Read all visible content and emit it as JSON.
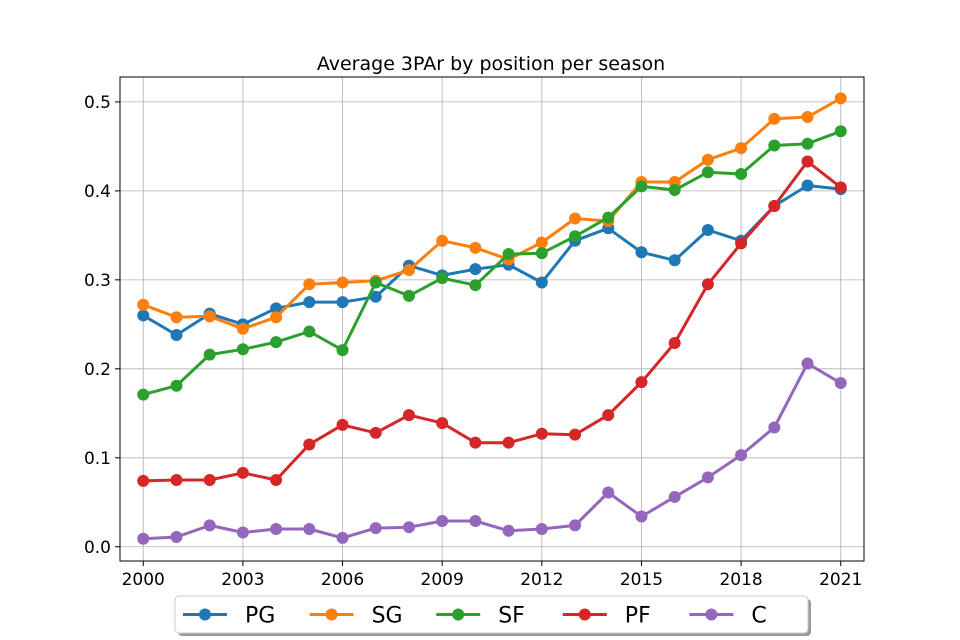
{
  "chart_data": {
    "type": "line",
    "title": "Average 3PAr by position per season",
    "xlabel": "",
    "ylabel": "",
    "x": [
      2000,
      2001,
      2002,
      2003,
      2004,
      2005,
      2006,
      2007,
      2008,
      2009,
      2010,
      2011,
      2012,
      2013,
      2014,
      2015,
      2016,
      2017,
      2018,
      2019,
      2020,
      2021
    ],
    "xlim": [
      1999.3,
      2021.7
    ],
    "ylim": [
      -0.016,
      0.528
    ],
    "x_ticks": [
      2000,
      2003,
      2006,
      2009,
      2012,
      2015,
      2018,
      2021
    ],
    "y_ticks": [
      0.0,
      0.1,
      0.2,
      0.3,
      0.4,
      0.5
    ],
    "y_tick_labels": [
      "0.0",
      "0.1",
      "0.2",
      "0.3",
      "0.4",
      "0.5"
    ],
    "grid": true,
    "legend_position": "bottom-center",
    "series": [
      {
        "name": "PG",
        "color": "#1f77b4",
        "values": [
          0.26,
          0.238,
          0.262,
          0.25,
          0.268,
          0.275,
          0.275,
          0.281,
          0.316,
          0.305,
          0.312,
          0.317,
          0.297,
          0.344,
          0.358,
          0.331,
          0.322,
          0.356,
          0.344,
          0.383,
          0.406,
          0.402
        ]
      },
      {
        "name": "SG",
        "color": "#ff7f0e",
        "values": [
          0.272,
          0.258,
          0.259,
          0.245,
          0.258,
          0.295,
          0.297,
          0.299,
          0.311,
          0.344,
          0.336,
          0.323,
          0.342,
          0.369,
          0.366,
          0.41,
          0.41,
          0.435,
          0.448,
          0.481,
          0.483,
          0.504
        ]
      },
      {
        "name": "SF",
        "color": "#2ca02c",
        "values": [
          0.171,
          0.181,
          0.216,
          0.222,
          0.23,
          0.242,
          0.221,
          0.297,
          0.282,
          0.302,
          0.294,
          0.329,
          0.33,
          0.349,
          0.37,
          0.405,
          0.401,
          0.421,
          0.419,
          0.451,
          0.453,
          0.467
        ]
      },
      {
        "name": "PF",
        "color": "#d62728",
        "values": [
          0.074,
          0.075,
          0.075,
          0.083,
          0.075,
          0.115,
          0.137,
          0.128,
          0.148,
          0.139,
          0.117,
          0.117,
          0.127,
          0.126,
          0.148,
          0.185,
          0.229,
          0.295,
          0.341,
          0.383,
          0.433,
          0.404
        ]
      },
      {
        "name": "C",
        "color": "#9467bd",
        "values": [
          0.009,
          0.011,
          0.024,
          0.016,
          0.02,
          0.02,
          0.01,
          0.021,
          0.022,
          0.029,
          0.029,
          0.018,
          0.02,
          0.024,
          0.061,
          0.034,
          0.056,
          0.078,
          0.103,
          0.134,
          0.206,
          0.184
        ]
      }
    ]
  }
}
